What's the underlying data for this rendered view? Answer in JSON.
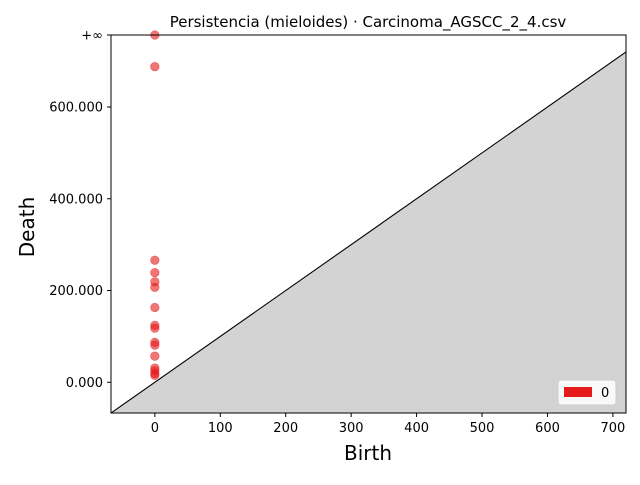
{
  "chart_data": {
    "type": "scatter",
    "title": "Persistencia (mieloides) · Carcinoma_AGSCC_2_4.csv",
    "xlabel": "Birth",
    "ylabel": "Death",
    "xlim": [
      -67,
      720
    ],
    "ylim": [
      -67,
      757
    ],
    "x_ticks": [
      {
        "value": 0,
        "label": "0"
      },
      {
        "value": 100,
        "label": "100"
      },
      {
        "value": 200,
        "label": "200"
      },
      {
        "value": 300,
        "label": "300"
      },
      {
        "value": 400,
        "label": "400"
      },
      {
        "value": 500,
        "label": "500"
      },
      {
        "value": 600,
        "label": "600"
      },
      {
        "value": 700,
        "label": "700"
      }
    ],
    "y_ticks": [
      {
        "value": 0,
        "label": "0.000"
      },
      {
        "value": 200,
        "label": "200.000"
      },
      {
        "value": 400,
        "label": "400.000"
      },
      {
        "value": 600,
        "label": "600.000"
      },
      {
        "value": 757,
        "label": "+∞"
      }
    ],
    "infinity_value": 757,
    "infinity_label": "+∞",
    "series": [
      {
        "name": "0",
        "color": "#e41a1c",
        "points": [
          {
            "x": 0,
            "y": 757
          },
          {
            "x": 0,
            "y": 688
          },
          {
            "x": 0,
            "y": 266
          },
          {
            "x": 0,
            "y": 239
          },
          {
            "x": 0,
            "y": 219
          },
          {
            "x": 0,
            "y": 207
          },
          {
            "x": 0,
            "y": 163
          },
          {
            "x": 0,
            "y": 124
          },
          {
            "x": 0,
            "y": 118
          },
          {
            "x": 0,
            "y": 87
          },
          {
            "x": 0,
            "y": 81
          },
          {
            "x": 0,
            "y": 57
          },
          {
            "x": 0,
            "y": 31
          },
          {
            "x": 0,
            "y": 25
          },
          {
            "x": 0,
            "y": 19
          },
          {
            "x": 0,
            "y": 15
          }
        ]
      }
    ],
    "legend": {
      "position": "bottom-right",
      "entries": [
        {
          "label": "0",
          "color": "#e41a1c"
        }
      ]
    },
    "grid": false,
    "colors": {
      "diagonal_fill": "#d3d3d3",
      "infinity_line": "#808080",
      "point": "#e41a1c"
    }
  }
}
